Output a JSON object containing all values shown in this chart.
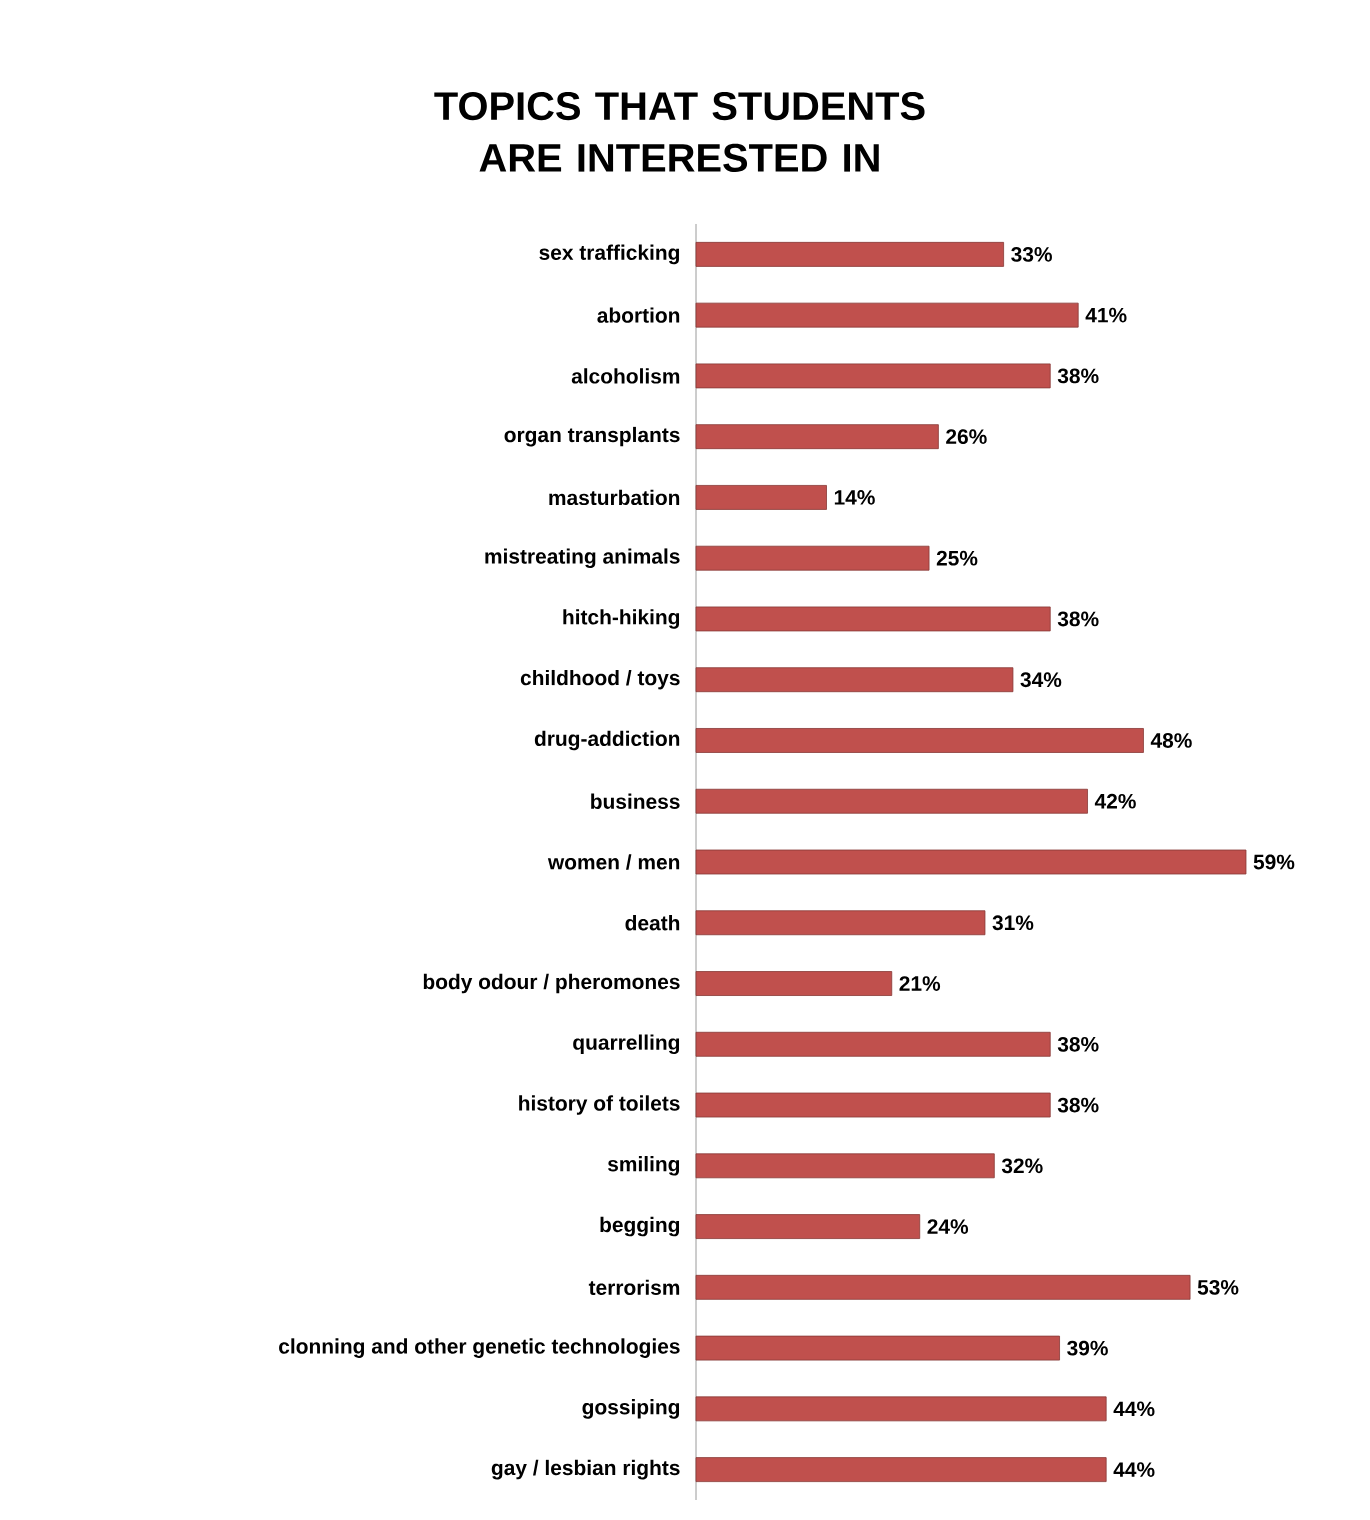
{
  "chart_data": {
    "type": "bar",
    "orientation": "horizontal",
    "title": "TOPICS THAT STUDENTS ARE INTERESTED IN",
    "categories": [
      "sex trafficking",
      "abortion",
      "alcoholism",
      "organ transplants",
      "masturbation",
      "mistreating animals",
      "hitch-hiking",
      "childhood / toys",
      "drug-addiction",
      "business",
      "women / men",
      "death",
      "body odour / pheromones",
      "quarrelling",
      "history of toilets",
      "smiling",
      "begging",
      "terrorism",
      "clonning and other genetic technologies",
      "gossiping",
      "gay / lesbian rights"
    ],
    "values": [
      33,
      41,
      38,
      26,
      14,
      25,
      38,
      34,
      48,
      42,
      59,
      31,
      21,
      38,
      38,
      32,
      24,
      53,
      39,
      44,
      44
    ],
    "value_labels": [
      "33%",
      "41%",
      "38%",
      "26%",
      "14%",
      "25%",
      "38%",
      "34%",
      "48%",
      "42%",
      "59%",
      "31%",
      "21%",
      "38%",
      "38%",
      "32%",
      "24%",
      "53%",
      "39%",
      "44%",
      "44%"
    ],
    "color": "#c0504d"
  }
}
